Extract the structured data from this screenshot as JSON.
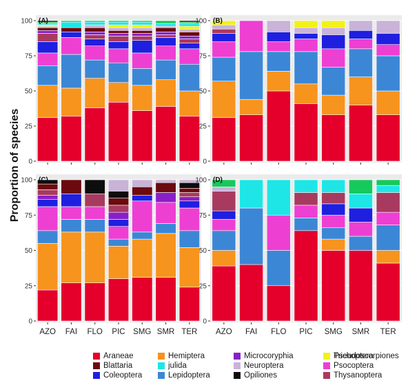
{
  "figure": {
    "ylabel": "Proportion of species",
    "sites": [
      "AZO",
      "FAI",
      "FLO",
      "PIC",
      "SMG",
      "SMR",
      "TER"
    ],
    "yticks": [
      "0",
      "25",
      "50",
      "75",
      "100"
    ]
  },
  "legend": [
    {
      "name": "Araneae",
      "color": "#e4002b"
    },
    {
      "name": "Blattaria",
      "color": "#6b0a0f"
    },
    {
      "name": "Coleoptera",
      "color": "#1f1fe0"
    },
    {
      "name": "Hemiptera",
      "color": "#f7941d"
    },
    {
      "name": "julida",
      "color": "#1ee6e6"
    },
    {
      "name": "Lepidoptera",
      "color": "#3b87d6"
    },
    {
      "name": "Microcoryphia",
      "color": "#8a1fc9"
    },
    {
      "name": "Neuroptera",
      "color": "#c9b3d9"
    },
    {
      "name": "Opiliones",
      "color": "#0d0d0d"
    },
    {
      "name": "Pseudoscorpiones",
      "color": "#16c95c"
    },
    {
      "name": "Psocoptera",
      "color": "#ee3fd3"
    },
    {
      "name": "Thysanoptera",
      "color": "#a83a5f"
    },
    {
      "name": "Trichoptera",
      "color": "#f2f216"
    }
  ],
  "chart_data": [
    {
      "type": "bar",
      "stacked": true,
      "panel": "(A)",
      "categories": [
        "AZO",
        "FAI",
        "FLO",
        "PIC",
        "SMG",
        "SMR",
        "TER"
      ],
      "ylim": [
        0,
        100
      ],
      "series": [
        {
          "name": "Araneae",
          "values": [
            31,
            32,
            38,
            42,
            36,
            39,
            32
          ]
        },
        {
          "name": "Hemiptera",
          "values": [
            23,
            20,
            21,
            14,
            18,
            19,
            18
          ]
        },
        {
          "name": "Lepidoptera",
          "values": [
            14,
            24,
            13,
            14,
            12,
            14,
            19
          ]
        },
        {
          "name": "Psocoptera",
          "values": [
            9,
            12,
            10,
            10,
            11,
            10,
            11
          ]
        },
        {
          "name": "Coleoptera",
          "values": [
            8,
            4,
            5,
            5,
            9,
            6,
            4
          ]
        },
        {
          "name": "Thysanoptera",
          "values": [
            6,
            0,
            3,
            4,
            3,
            2,
            3
          ]
        },
        {
          "name": "Microcoryphia",
          "values": [
            2,
            0,
            2,
            2,
            2,
            2,
            2
          ]
        },
        {
          "name": "Blattaria",
          "values": [
            2,
            3,
            3,
            2,
            2,
            3,
            3
          ]
        },
        {
          "name": "Neuroptera",
          "values": [
            1,
            0,
            2,
            2,
            2,
            1,
            2
          ]
        },
        {
          "name": "Trichoptera",
          "values": [
            1,
            0,
            0,
            2,
            2,
            0,
            2
          ]
        },
        {
          "name": "julida",
          "values": [
            1,
            4,
            2,
            2,
            2,
            2,
            2
          ]
        },
        {
          "name": "Pseudoscorpiones",
          "values": [
            1,
            1,
            1,
            1,
            1,
            2,
            1
          ]
        },
        {
          "name": "Opiliones",
          "values": [
            1,
            0,
            0,
            0,
            0,
            0,
            1
          ]
        }
      ]
    },
    {
      "type": "bar",
      "stacked": true,
      "panel": "(B)",
      "categories": [
        "AZO",
        "FAI",
        "FLO",
        "PIC",
        "SMG",
        "SMR",
        "TER"
      ],
      "ylim": [
        0,
        100
      ],
      "series": [
        {
          "name": "Araneae",
          "values": [
            31,
            33,
            50,
            41,
            33,
            40,
            33
          ]
        },
        {
          "name": "Hemiptera",
          "values": [
            26,
            11,
            14,
            14,
            14,
            20,
            17
          ]
        },
        {
          "name": "Lepidoptera",
          "values": [
            17,
            34,
            14,
            23,
            20,
            20,
            25
          ]
        },
        {
          "name": "Psocoptera",
          "values": [
            11,
            22,
            7,
            9,
            13,
            7,
            8
          ]
        },
        {
          "name": "Coleoptera",
          "values": [
            6,
            0,
            7,
            4,
            10,
            6,
            8
          ]
        },
        {
          "name": "Thysanoptera",
          "values": [
            3,
            0,
            0,
            0,
            0,
            0,
            0
          ]
        },
        {
          "name": "Neuroptera",
          "values": [
            3,
            0,
            8,
            4,
            5,
            7,
            9
          ]
        },
        {
          "name": "Trichoptera",
          "values": [
            3,
            0,
            0,
            5,
            5,
            0,
            0
          ]
        }
      ]
    },
    {
      "type": "bar",
      "stacked": true,
      "panel": "(C)",
      "categories": [
        "AZO",
        "FAI",
        "FLO",
        "PIC",
        "SMG",
        "SMR",
        "TER"
      ],
      "ylim": [
        0,
        100
      ],
      "series": [
        {
          "name": "Araneae",
          "values": [
            22,
            27,
            27,
            30,
            31,
            31,
            24
          ]
        },
        {
          "name": "Hemiptera",
          "values": [
            33,
            36,
            36,
            23,
            27,
            31,
            28
          ]
        },
        {
          "name": "Lepidoptera",
          "values": [
            9,
            9,
            9,
            5,
            5,
            7,
            12
          ]
        },
        {
          "name": "Psocoptera",
          "values": [
            17,
            9,
            9,
            9,
            22,
            15,
            16
          ]
        },
        {
          "name": "Coleoptera",
          "values": [
            5,
            9,
            0,
            5,
            4,
            0,
            5
          ]
        },
        {
          "name": "Microcoryphia",
          "values": [
            3,
            0,
            0,
            5,
            0,
            7,
            3
          ]
        },
        {
          "name": "Thysanoptera",
          "values": [
            4,
            0,
            9,
            5,
            0,
            0,
            3
          ]
        },
        {
          "name": "Blattaria",
          "values": [
            4,
            10,
            0,
            5,
            6,
            7,
            3
          ]
        },
        {
          "name": "Opiliones",
          "values": [
            3,
            0,
            10,
            5,
            0,
            0,
            4
          ]
        },
        {
          "name": "Neuroptera",
          "values": [
            0,
            0,
            0,
            8,
            5,
            2,
            2
          ]
        }
      ]
    },
    {
      "type": "bar",
      "stacked": true,
      "panel": "(D)",
      "categories": [
        "AZO",
        "FAI",
        "FLO",
        "PIC",
        "SMG",
        "SMR",
        "TER"
      ],
      "ylim": [
        0,
        100
      ],
      "series": [
        {
          "name": "Araneae",
          "values": [
            39,
            40,
            25,
            64,
            50,
            50,
            41
          ]
        },
        {
          "name": "Hemiptera",
          "values": [
            11,
            0,
            0,
            0,
            8,
            0,
            9
          ]
        },
        {
          "name": "Lepidoptera",
          "values": [
            14,
            40,
            25,
            9,
            8,
            10,
            18
          ]
        },
        {
          "name": "Psocoptera",
          "values": [
            8,
            0,
            25,
            9,
            9,
            10,
            9
          ]
        },
        {
          "name": "Coleoptera",
          "values": [
            6,
            0,
            0,
            0,
            8,
            10,
            0
          ]
        },
        {
          "name": "Thysanoptera",
          "values": [
            14,
            0,
            0,
            9,
            8,
            0,
            14
          ]
        },
        {
          "name": "Neuroptera",
          "values": [
            3,
            0,
            0,
            0,
            0,
            0,
            0
          ]
        },
        {
          "name": "julida",
          "values": [
            0,
            20,
            25,
            9,
            9,
            10,
            5
          ]
        },
        {
          "name": "Pseudoscorpiones",
          "values": [
            5,
            0,
            0,
            0,
            0,
            10,
            4
          ]
        }
      ]
    }
  ]
}
